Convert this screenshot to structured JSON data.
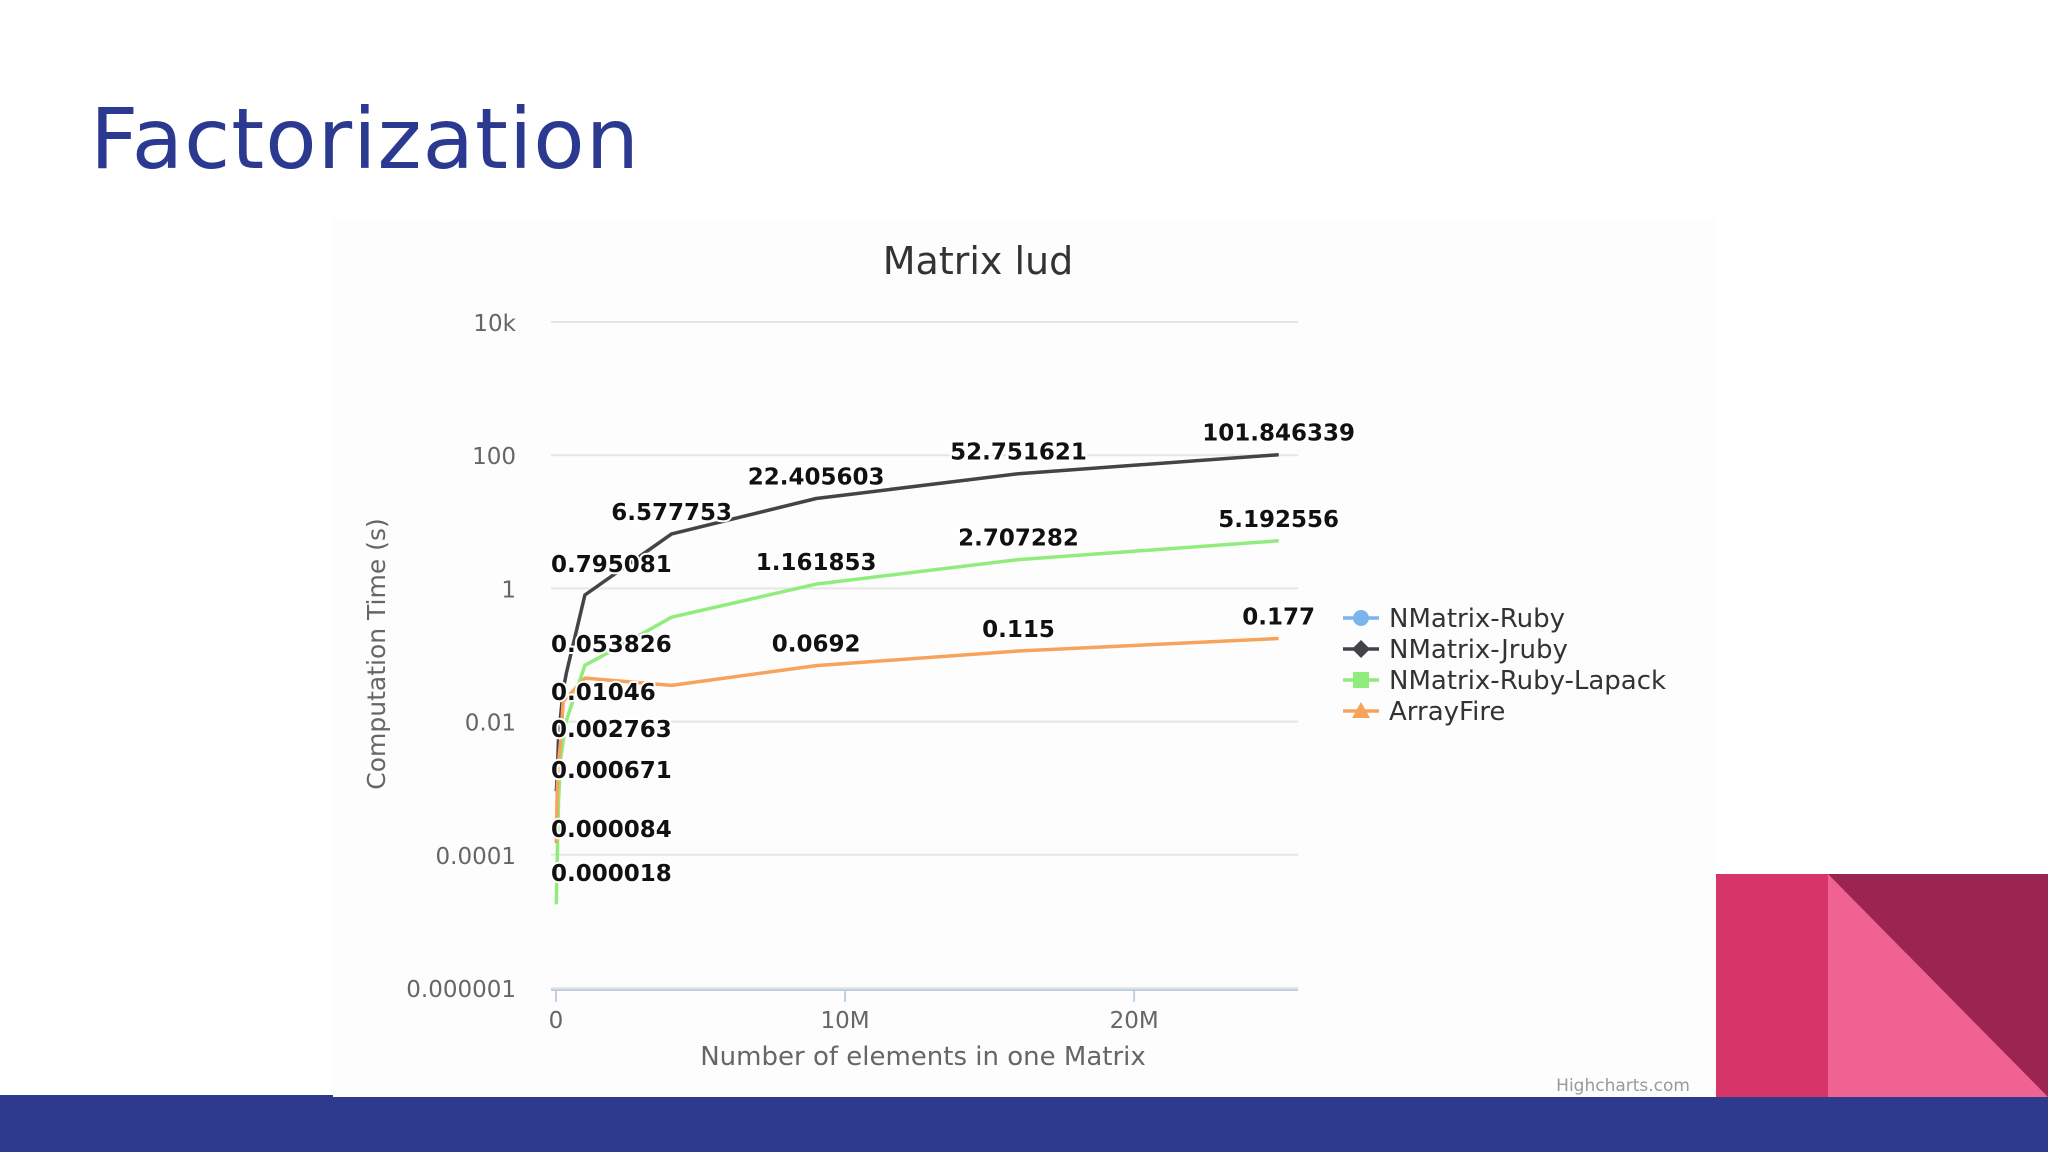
{
  "slide": {
    "title": "Factorization",
    "colors": {
      "title": "#2b3990",
      "bottom_bar": "#2e3a8c",
      "corner_pink": "#f06292",
      "corner_magenta": "#d63569",
      "corner_dark": "#9b2550"
    }
  },
  "chart_data": {
    "type": "line",
    "title": "Matrix lud",
    "xlabel": "Number of elements in one Matrix",
    "ylabel": "Computation Time (s)",
    "y_scale": "log",
    "xlim": [
      0,
      25600000
    ],
    "ylim": [
      1e-06,
      10000
    ],
    "x_ticks": [
      {
        "value": 0,
        "label": "0"
      },
      {
        "value": 10000000,
        "label": "10M"
      },
      {
        "value": 20000000,
        "label": "20M"
      }
    ],
    "y_ticks": [
      {
        "value": 10000,
        "label": "10k"
      },
      {
        "value": 100,
        "label": "100"
      },
      {
        "value": 1,
        "label": "1"
      },
      {
        "value": 0.01,
        "label": "0.01"
      },
      {
        "value": 0.0001,
        "label": "0.0001"
      },
      {
        "value": 1e-06,
        "label": "0.000001"
      }
    ],
    "grid": true,
    "legend_position": "right",
    "credit": "Highcharts.com",
    "series": [
      {
        "name": "NMatrix-Ruby",
        "color": "#7cb5ec",
        "marker": "circle",
        "points": []
      },
      {
        "name": "NMatrix-Jruby",
        "color": "#434348",
        "marker": "diamond",
        "points": [
          [
            10000,
            0.0009
          ],
          [
            40000,
            0.0015
          ],
          [
            90000,
            0.006
          ],
          [
            160000,
            0.012
          ],
          [
            250000,
            0.03
          ],
          [
            360000,
            0.053826
          ],
          [
            1000000,
            0.795081
          ],
          [
            4000000,
            6.577753
          ],
          [
            9000000,
            22.405603
          ],
          [
            16000000,
            52.751621
          ],
          [
            25000000,
            101.846339
          ]
        ],
        "labels": [
          [
            4000000,
            6.577753,
            "6.577753"
          ],
          [
            9000000,
            22.405603,
            "22.405603"
          ],
          [
            16000000,
            52.751621,
            "52.751621"
          ],
          [
            25000000,
            101.846339,
            "101.846339"
          ]
        ]
      },
      {
        "name": "NMatrix-Ruby-Lapack",
        "color": "#90ed7d",
        "marker": "square",
        "points": [
          [
            10000,
            1.8e-05
          ],
          [
            40000,
            8.4e-05
          ],
          [
            90000,
            0.000671
          ],
          [
            160000,
            0.002763
          ],
          [
            250000,
            0.005
          ],
          [
            360000,
            0.01046
          ],
          [
            1000000,
            0.07
          ],
          [
            2000000,
            0.12
          ],
          [
            4000000,
            0.37
          ],
          [
            9000000,
            1.161853
          ],
          [
            16000000,
            2.707282
          ],
          [
            25000000,
            5.192556
          ]
        ],
        "labels": [
          [
            9000000,
            1.161853,
            "1.161853"
          ],
          [
            16000000,
            2.707282,
            "2.707282"
          ],
          [
            25000000,
            5.192556,
            "5.192556"
          ]
        ]
      },
      {
        "name": "ArrayFire",
        "color": "#f7a35c",
        "marker": "triangle",
        "points": [
          [
            10000,
            0.00015
          ],
          [
            40000,
            0.0009
          ],
          [
            90000,
            0.0025
          ],
          [
            160000,
            0.005
          ],
          [
            250000,
            0.02
          ],
          [
            1000000,
            0.045
          ],
          [
            4000000,
            0.035
          ],
          [
            9000000,
            0.0692
          ],
          [
            16000000,
            0.115
          ],
          [
            25000000,
            0.177
          ]
        ],
        "labels": [
          [
            9000000,
            0.0692,
            "0.0692"
          ],
          [
            16000000,
            0.115,
            "0.115"
          ],
          [
            25000000,
            0.177,
            "0.177"
          ]
        ]
      }
    ],
    "stacked_labels": [
      "0.795081",
      "0.053826",
      "0.01046",
      "0.002763",
      "0.000671",
      "0.000084",
      "0.000018"
    ]
  }
}
